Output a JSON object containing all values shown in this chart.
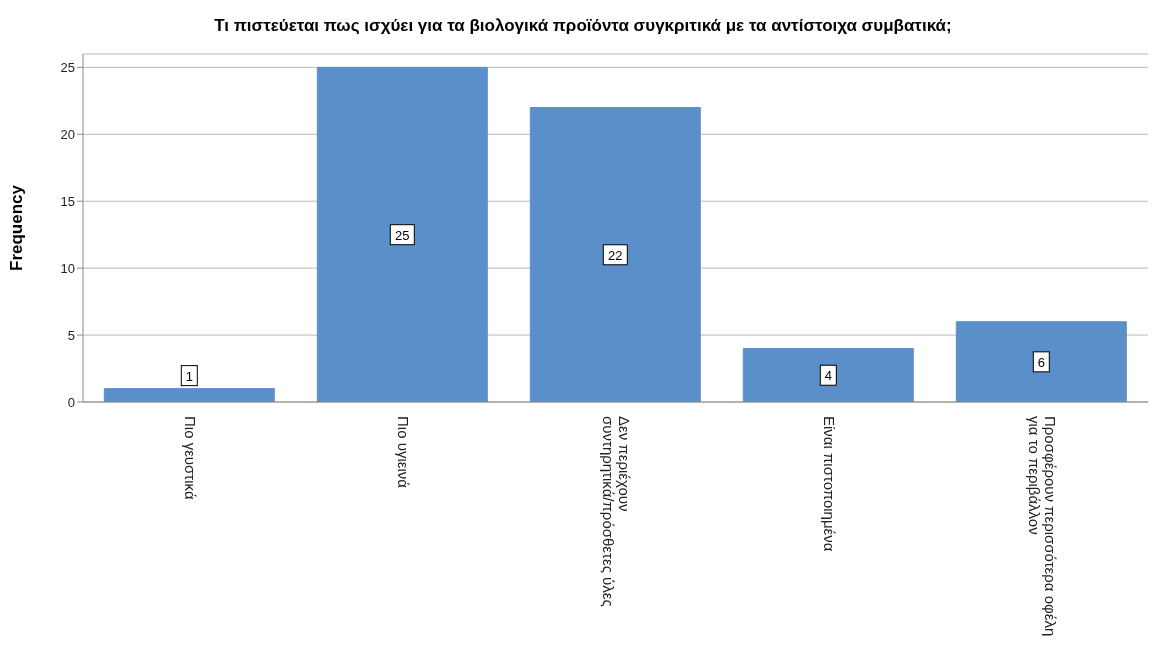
{
  "chart_data": {
    "type": "bar",
    "title": "Τι πιστεύεται πως ισχύει για τα βιολογικά προϊόντα συγκριτικά με τα αντίστοιχα συμβατικά;",
    "ylabel": "Frequency",
    "categories": [
      "Πιο γευστικά",
      "Πιο υγιεινά",
      "Δεν περιέχουν συντηρητικά/πρόσθετες ύλες",
      "Είναι πιστοποιημένα",
      "Προσφέρουν περισσότερα οφέλη για το περιβάλλον"
    ],
    "values": [
      1,
      25,
      22,
      4,
      6
    ],
    "color": "#5b8fc9",
    "ylim": [
      0,
      26
    ],
    "yticks": [
      0,
      5,
      10,
      15,
      20,
      25
    ],
    "grid": "y",
    "data_labels": true
  }
}
